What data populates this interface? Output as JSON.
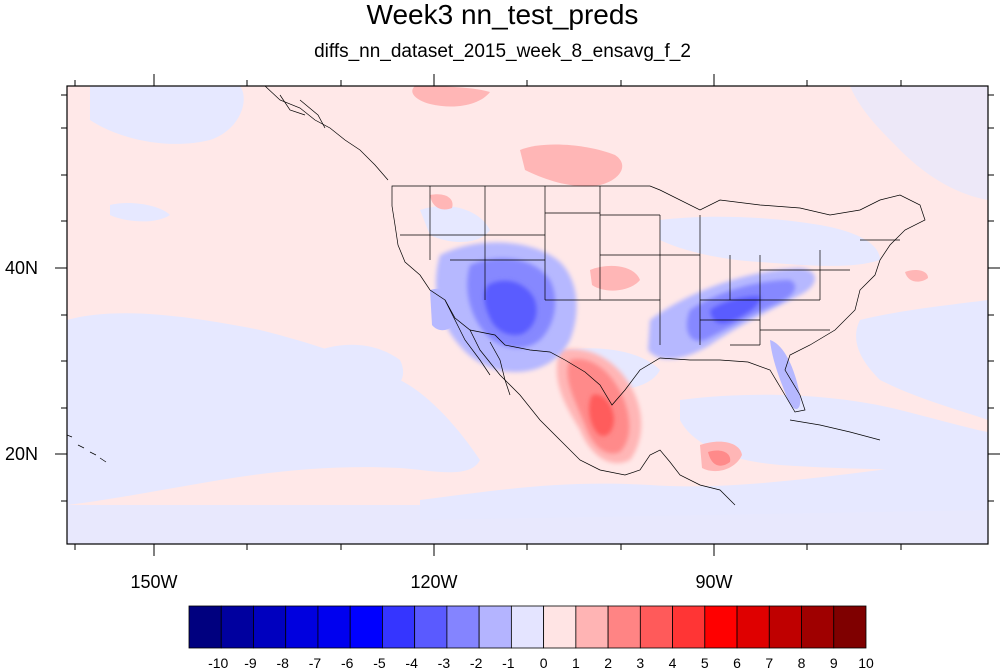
{
  "title": "Week3 nn_test_preds",
  "subtitle": "diffs_nn_dataset_2015_week_8_ensavg_f_2",
  "map": {
    "lat_labels": [
      "40N",
      "20N"
    ],
    "lon_labels": [
      "150W",
      "120W",
      "90W"
    ],
    "lon_range": [
      -161,
      -62
    ],
    "lat_range": [
      11,
      59
    ]
  },
  "colorbar": {
    "labels": [
      "-10",
      "-9",
      "-8",
      "-7",
      "-6",
      "-5",
      "-4",
      "-3",
      "-2",
      "-1",
      "0",
      "1",
      "2",
      "3",
      "4",
      "5",
      "6",
      "7",
      "8",
      "9",
      "10"
    ],
    "colors": [
      "#00007f",
      "#00009f",
      "#0000bf",
      "#0000df",
      "#0000ef",
      "#0000ff",
      "#3535ff",
      "#5a5aff",
      "#8484ff",
      "#b4b4ff",
      "#e4e4ff",
      "#ffe4e4",
      "#ffb4b4",
      "#ff8484",
      "#ff5a5a",
      "#ff3535",
      "#ff0000",
      "#df0000",
      "#bf0000",
      "#9f0000",
      "#7f0000"
    ]
  }
}
